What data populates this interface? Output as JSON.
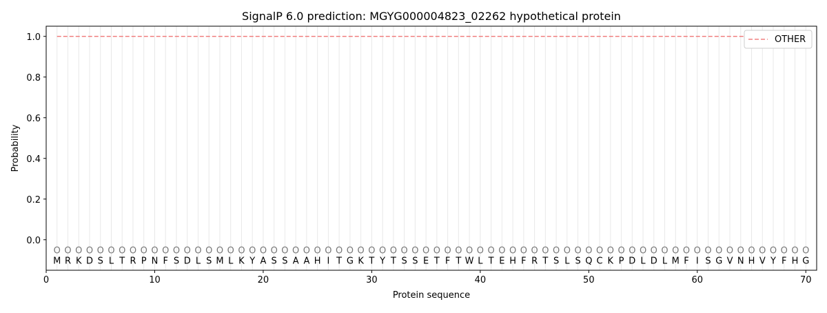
{
  "chart_data": {
    "type": "line",
    "title": "SignalP 6.0 prediction: MGYG000004823_02262 hypothetical protein",
    "xlabel": "Protein sequence",
    "ylabel": "Probability",
    "xlim": [
      0,
      71
    ],
    "ylim": [
      -0.15,
      1.05
    ],
    "xticks": [
      0,
      10,
      20,
      30,
      40,
      50,
      60,
      70
    ],
    "yticks": [
      0.0,
      0.2,
      0.4,
      0.6,
      0.8,
      1.0
    ],
    "ytick_labels": [
      "0.0",
      "0.2",
      "0.4",
      "0.6",
      "0.8",
      "1.0"
    ],
    "sequence": [
      "M",
      "R",
      "K",
      "D",
      "S",
      "L",
      "T",
      "R",
      "P",
      "N",
      "F",
      "S",
      "D",
      "L",
      "S",
      "M",
      "L",
      "K",
      "Y",
      "A",
      "S",
      "S",
      "A",
      "A",
      "H",
      "I",
      "T",
      "G",
      "K",
      "T",
      "Y",
      "T",
      "S",
      "S",
      "E",
      "T",
      "F",
      "T",
      "W",
      "L",
      "T",
      "E",
      "H",
      "F",
      "R",
      "T",
      "S",
      "L",
      "S",
      "Q",
      "C",
      "K",
      "P",
      "D",
      "L",
      "D",
      "L",
      "M",
      "F",
      "I",
      "S",
      "G",
      "V",
      "N",
      "H",
      "V",
      "Y",
      "F",
      "H",
      "G"
    ],
    "predicted_labels": "OOOOOOOOOOOOOOOOOOOOOOOOOOOOOOOOOOOOOOOOOOOOOOOOOOOOOOOOOOOOOOOOOOOOOO",
    "series": [
      {
        "name": "OTHER",
        "x_start": 1,
        "x_end": 70,
        "value": 1.0,
        "color": "#f08080",
        "style": "dashed"
      }
    ],
    "grid": "vertical lines at each residue",
    "legend_placement": "top-right"
  }
}
